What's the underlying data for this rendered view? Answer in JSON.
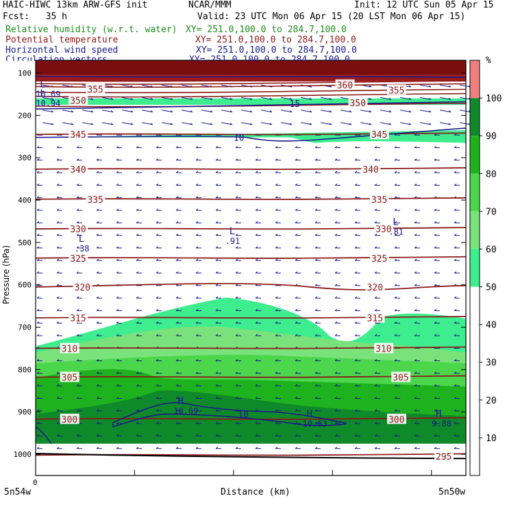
{
  "header": {
    "model": "HAIC-HIWC 13km ARW-GFS init",
    "center": "NCAR/MMM",
    "init": "Init: 12 UTC Sun 05 Apr 15",
    "fcst": "Fcst:   35 h",
    "valid": "Valid: 23 UTC Mon 06 Apr 15 (20 LST Mon 06 Apr 15)",
    "fields": [
      {
        "name": "Relative humidity (w.r.t. water)",
        "xy": "XY= 251.0,100.0 to 284.7,100.0",
        "color": "#1e8c1e"
      },
      {
        "name": "Potential temperature",
        "xy": "XY= 251.0,100.0 to 284.7,100.0",
        "color": "#8b1a1a"
      },
      {
        "name": "Horizontal wind speed",
        "xy": "XY= 251.0,100.0 to 284.7,100.0",
        "color": "#1a1a8b"
      },
      {
        "name": "Circulation vectors",
        "xy": "XY= 251.0,100.0 to 284.7,100.0",
        "color": "#1a1a8b"
      }
    ]
  },
  "chart_data": {
    "type": "heatmap",
    "ylabel": "Pressure (hPa)",
    "xlabel": "Distance (km)",
    "x_left_label": "5n54w",
    "x_right_label": "5n50w",
    "x_zero_label": "0",
    "y_ticks": [
      100,
      200,
      300,
      400,
      500,
      600,
      700,
      800,
      900,
      1000
    ],
    "ylim": [
      1050,
      70
    ],
    "colorbar": {
      "unit": "%",
      "ticks": [
        10,
        20,
        30,
        40,
        50,
        60,
        70,
        80,
        90,
        100
      ],
      "bands": [
        {
          "from": 50,
          "to": 60,
          "color": "#3ded8e"
        },
        {
          "from": 60,
          "to": 70,
          "color": "#7ae27a"
        },
        {
          "from": 70,
          "to": 80,
          "color": "#4cd64c"
        },
        {
          "from": 80,
          "to": 90,
          "color": "#1eb21e"
        },
        {
          "from": 90,
          "to": 100,
          "color": "#0f8a2a"
        },
        {
          "from": 100,
          "to": 110,
          "color": "#f08080"
        }
      ]
    },
    "theta_contours": [
      {
        "level": "345",
        "p": 245
      },
      {
        "level": "340",
        "p": 327
      },
      {
        "level": "335",
        "p": 398
      },
      {
        "level": "330",
        "p": 468
      },
      {
        "level": "325",
        "p": 537
      },
      {
        "level": "320",
        "p": 605
      },
      {
        "level": "315",
        "p": 678
      },
      {
        "level": "310",
        "p": 750
      },
      {
        "level": "305",
        "p": 818
      },
      {
        "level": "300",
        "p": 917
      },
      {
        "level": "295",
        "p": 1002
      }
    ],
    "theta_labels": [
      {
        "text": "345",
        "x": 0.08,
        "p": 245
      },
      {
        "text": "345",
        "x": 0.78,
        "p": 245
      },
      {
        "text": "340",
        "x": 0.08,
        "p": 327
      },
      {
        "text": "340",
        "x": 0.76,
        "p": 327
      },
      {
        "text": "335",
        "x": 0.12,
        "p": 398
      },
      {
        "text": "335",
        "x": 0.78,
        "p": 398
      },
      {
        "text": "330",
        "x": 0.08,
        "p": 468
      },
      {
        "text": "330",
        "x": 0.79,
        "p": 468
      },
      {
        "text": "325",
        "x": 0.08,
        "p": 537
      },
      {
        "text": "325",
        "x": 0.78,
        "p": 537
      },
      {
        "text": "320",
        "x": 0.09,
        "p": 605
      },
      {
        "text": "320",
        "x": 0.77,
        "p": 605
      },
      {
        "text": "315",
        "x": 0.08,
        "p": 678
      },
      {
        "text": "315",
        "x": 0.77,
        "p": 678
      },
      {
        "text": "310",
        "x": 0.06,
        "p": 750
      },
      {
        "text": "310",
        "x": 0.79,
        "p": 750
      },
      {
        "text": "305",
        "x": 0.06,
        "p": 818
      },
      {
        "text": "305",
        "x": 0.83,
        "p": 818
      },
      {
        "text": "300",
        "x": 0.06,
        "p": 917
      },
      {
        "text": "300",
        "x": 0.82,
        "p": 917
      },
      {
        "text": "295",
        "x": 0.93,
        "p": 1005
      },
      {
        "text": "350",
        "x": 0.08,
        "p": 165
      },
      {
        "text": "350",
        "x": 0.73,
        "p": 170
      },
      {
        "text": "355",
        "x": 0.12,
        "p": 138
      },
      {
        "text": "355",
        "x": 0.82,
        "p": 140
      },
      {
        "text": "360",
        "x": 0.7,
        "p": 128
      }
    ],
    "wind_labels": [
      {
        "text": "10",
        "x": 0.46,
        "p": 252
      },
      {
        "text": "15",
        "x": 0.59,
        "p": 172
      },
      {
        "text": "10",
        "x": 0.47,
        "p": 905
      }
    ],
    "extrema": [
      {
        "text": "L",
        "sub": ".81",
        "x": 0.83,
        "p": 465
      },
      {
        "text": "L",
        "sub": ".91",
        "x": 0.45,
        "p": 487
      },
      {
        "text": "L",
        "sub": ".38",
        "x": 0.1,
        "p": 505
      },
      {
        "text": "H",
        "sub": "10.69",
        "x": 0.33,
        "p": 888
      },
      {
        "text": "H",
        "sub": "10.63",
        "x": 0.63,
        "p": 918
      },
      {
        "text": "H",
        "sub": "9.88",
        "x": 0.93,
        "p": 918
      },
      {
        "text": "L",
        "sub": "10.69",
        "x": 0.01,
        "p": 140
      },
      {
        "text": "L",
        "sub": "10.94",
        "x": 0.01,
        "p": 162
      }
    ]
  }
}
